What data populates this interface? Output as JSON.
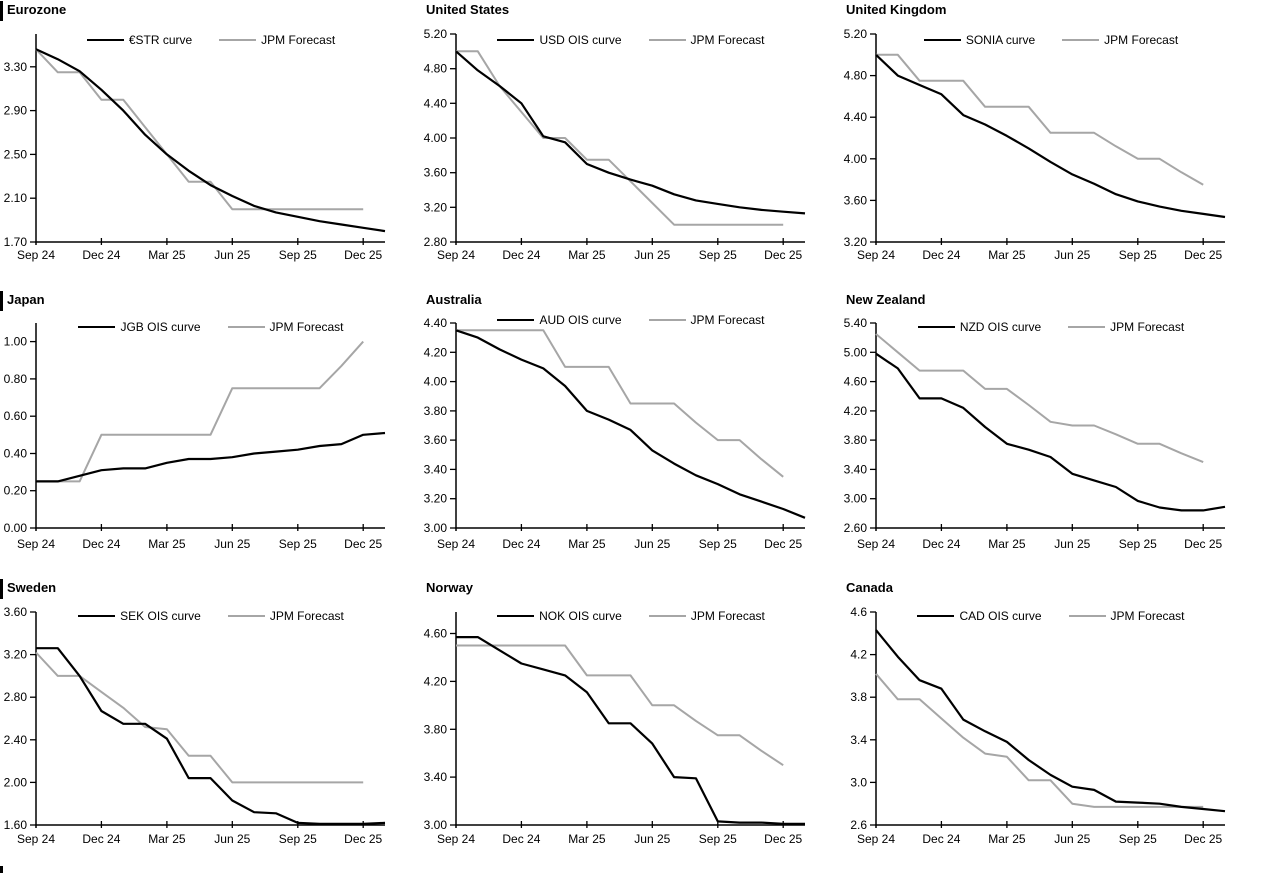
{
  "page": {
    "background": "#ffffff",
    "curve_color": "#000000",
    "forecast_color": "#a6a6a6",
    "forecast_label": "JPM Forecast"
  },
  "chart_data": [
    {
      "type": "line",
      "title": "Eurozone",
      "x_tick_labels": [
        "Sep 24",
        "Dec 24",
        "Mar 25",
        "Jun 25",
        "Sep 25",
        "Dec 25"
      ],
      "x_tick_positions": [
        0,
        3,
        6,
        9,
        12,
        15
      ],
      "x_note": "points are monthly from Sep 24; curves extend one month past Dec 25",
      "ylim": [
        1.7,
        3.6
      ],
      "grid": false,
      "legend_position": "top-center",
      "ytick_labels": [
        "3.30",
        "2.90",
        "2.50",
        "2.10",
        "1.70"
      ],
      "series": [
        {
          "name": "€STR curve",
          "color": "#000000",
          "values": [
            3.46,
            3.37,
            3.26,
            3.09,
            2.9,
            2.68,
            2.5,
            2.35,
            2.22,
            2.12,
            2.03,
            1.97,
            1.93,
            1.89,
            1.86,
            1.83,
            1.8
          ]
        },
        {
          "name": "JPM Forecast",
          "color": "#a6a6a6",
          "values": [
            3.46,
            3.25,
            3.25,
            3.0,
            3.0,
            2.75,
            2.5,
            2.25,
            2.25,
            2.0,
            2.0,
            2.0,
            2.0,
            2.0,
            2.0,
            2.0
          ]
        }
      ]
    },
    {
      "type": "line",
      "title": "United States",
      "x_tick_labels": [
        "Sep 24",
        "Dec 24",
        "Mar 25",
        "Jun 25",
        "Sep 25",
        "Dec 25"
      ],
      "x_tick_positions": [
        0,
        3,
        6,
        9,
        12,
        15
      ],
      "ylim": [
        2.8,
        5.2
      ],
      "grid": false,
      "legend_position": "top-center",
      "ytick_labels": [
        "5.20",
        "4.80",
        "4.40",
        "4.00",
        "3.60",
        "3.20",
        "2.80"
      ],
      "series": [
        {
          "name": "USD OIS curve",
          "color": "#000000",
          "values": [
            5.0,
            4.78,
            4.6,
            4.4,
            4.02,
            3.95,
            3.7,
            3.6,
            3.52,
            3.45,
            3.35,
            3.28,
            3.24,
            3.2,
            3.17,
            3.15,
            3.13
          ]
        },
        {
          "name": "JPM Forecast",
          "color": "#a6a6a6",
          "values": [
            5.0,
            5.0,
            4.6,
            4.3,
            4.0,
            4.0,
            3.75,
            3.75,
            3.5,
            3.25,
            3.0,
            3.0,
            3.0,
            3.0,
            3.0,
            3.0
          ]
        }
      ]
    },
    {
      "type": "line",
      "title": "United Kingdom",
      "x_tick_labels": [
        "Sep 24",
        "Dec 24",
        "Mar 25",
        "Jun 25",
        "Sep 25",
        "Dec 25"
      ],
      "x_tick_positions": [
        0,
        3,
        6,
        9,
        12,
        15
      ],
      "ylim": [
        3.2,
        5.2
      ],
      "grid": false,
      "legend_position": "top-center",
      "ytick_labels": [
        "5.20",
        "4.80",
        "4.40",
        "4.00",
        "3.60",
        "3.20"
      ],
      "series": [
        {
          "name": "SONIA curve",
          "color": "#000000",
          "values": [
            5.0,
            4.8,
            4.71,
            4.62,
            4.42,
            4.33,
            4.22,
            4.1,
            3.97,
            3.85,
            3.76,
            3.66,
            3.59,
            3.54,
            3.5,
            3.47,
            3.44
          ]
        },
        {
          "name": "JPM Forecast",
          "color": "#a6a6a6",
          "values": [
            5.0,
            5.0,
            4.75,
            4.75,
            4.75,
            4.5,
            4.5,
            4.5,
            4.25,
            4.25,
            4.25,
            4.12,
            4.0,
            4.0,
            3.87,
            3.75
          ]
        }
      ]
    },
    {
      "type": "line",
      "title": "Japan",
      "x_tick_labels": [
        "Sep 24",
        "Dec 24",
        "Mar 25",
        "Jun 25",
        "Sep 25",
        "Dec 25"
      ],
      "x_tick_positions": [
        0,
        3,
        6,
        9,
        12,
        15
      ],
      "ylim": [
        0.0,
        1.1
      ],
      "grid": false,
      "legend_position": "top-center",
      "ytick_labels": [
        "1.00",
        "0.80",
        "0.60",
        "0.40",
        "0.20",
        "0.00"
      ],
      "series": [
        {
          "name": "JGB OIS curve",
          "color": "#000000",
          "values": [
            0.25,
            0.25,
            0.28,
            0.31,
            0.32,
            0.32,
            0.35,
            0.37,
            0.37,
            0.38,
            0.4,
            0.41,
            0.42,
            0.44,
            0.45,
            0.5,
            0.51
          ]
        },
        {
          "name": "JPM Forecast",
          "color": "#a6a6a6",
          "values": [
            0.25,
            0.25,
            0.25,
            0.5,
            0.5,
            0.5,
            0.5,
            0.5,
            0.5,
            0.75,
            0.75,
            0.75,
            0.75,
            0.75,
            0.87,
            1.0
          ]
        }
      ]
    },
    {
      "type": "line",
      "title": "Australia",
      "x_tick_labels": [
        "Sep 24",
        "Dec 24",
        "Mar 25",
        "Jun 25",
        "Sep 25",
        "Dec 25"
      ],
      "x_tick_positions": [
        0,
        3,
        6,
        9,
        12,
        15
      ],
      "ylim": [
        3.0,
        4.4
      ],
      "grid": false,
      "legend_position": "top-center",
      "ytick_labels": [
        "4.40",
        "4.20",
        "4.00",
        "3.80",
        "3.60",
        "3.40",
        "3.20",
        "3.00"
      ],
      "series": [
        {
          "name": "AUD OIS curve",
          "color": "#000000",
          "values": [
            4.35,
            4.3,
            4.22,
            4.15,
            4.09,
            3.97,
            3.8,
            3.74,
            3.67,
            3.53,
            3.44,
            3.36,
            3.3,
            3.23,
            3.18,
            3.13,
            3.07
          ]
        },
        {
          "name": "JPM Forecast",
          "color": "#a6a6a6",
          "values": [
            4.35,
            4.35,
            4.35,
            4.35,
            4.35,
            4.1,
            4.1,
            4.1,
            3.85,
            3.85,
            3.85,
            3.72,
            3.6,
            3.6,
            3.47,
            3.35
          ]
        }
      ]
    },
    {
      "type": "line",
      "title": "New Zealand",
      "x_tick_labels": [
        "Sep 24",
        "Dec 24",
        "Mar 25",
        "Jun 25",
        "Sep 25",
        "Dec 25"
      ],
      "x_tick_positions": [
        0,
        3,
        6,
        9,
        12,
        15
      ],
      "ylim": [
        2.6,
        5.4
      ],
      "grid": false,
      "legend_position": "top-center",
      "ytick_labels": [
        "5.40",
        "5.00",
        "4.60",
        "4.20",
        "3.80",
        "3.40",
        "3.00",
        "2.60"
      ],
      "series": [
        {
          "name": "NZD OIS curve",
          "color": "#000000",
          "values": [
            4.98,
            4.78,
            4.37,
            4.37,
            4.24,
            3.98,
            3.75,
            3.67,
            3.57,
            3.34,
            3.25,
            3.16,
            2.97,
            2.88,
            2.84,
            2.84,
            2.89
          ]
        },
        {
          "name": "JPM Forecast",
          "color": "#a6a6a6",
          "values": [
            5.25,
            5.0,
            4.75,
            4.75,
            4.75,
            4.5,
            4.5,
            4.28,
            4.05,
            4.0,
            4.0,
            3.88,
            3.75,
            3.75,
            3.62,
            3.5
          ]
        }
      ]
    },
    {
      "type": "line",
      "title": "Sweden",
      "x_tick_labels": [
        "Sep 24",
        "Dec 24",
        "Mar 25",
        "Jun 25",
        "Sep 25",
        "Dec 25"
      ],
      "x_tick_positions": [
        0,
        3,
        6,
        9,
        12,
        15
      ],
      "ylim": [
        1.6,
        3.6
      ],
      "grid": false,
      "legend_position": "top-center",
      "ytick_labels": [
        "3.60",
        "3.20",
        "2.80",
        "2.40",
        "2.00",
        "1.60"
      ],
      "series": [
        {
          "name": "SEK OIS curve",
          "color": "#000000",
          "values": [
            3.26,
            3.26,
            3.0,
            2.67,
            2.55,
            2.55,
            2.41,
            2.04,
            2.04,
            1.83,
            1.72,
            1.71,
            1.62,
            1.61,
            1.61,
            1.61,
            1.62
          ]
        },
        {
          "name": "JPM Forecast",
          "color": "#a6a6a6",
          "values": [
            3.22,
            3.0,
            3.0,
            2.85,
            2.7,
            2.52,
            2.5,
            2.25,
            2.25,
            2.0,
            2.0,
            2.0,
            2.0,
            2.0,
            2.0,
            2.0
          ]
        }
      ]
    },
    {
      "type": "line",
      "title": "Norway",
      "x_tick_labels": [
        "Sep 24",
        "Dec 24",
        "Mar 25",
        "Jun 25",
        "Sep 25",
        "Dec 25"
      ],
      "x_tick_positions": [
        0,
        3,
        6,
        9,
        12,
        15
      ],
      "ylim": [
        3.0,
        4.78
      ],
      "grid": false,
      "legend_position": "top-center",
      "ytick_labels": [
        "4.60",
        "4.20",
        "3.80",
        "3.40",
        "3.00"
      ],
      "series": [
        {
          "name": "NOK OIS curve",
          "color": "#000000",
          "values": [
            4.57,
            4.57,
            4.46,
            4.35,
            4.3,
            4.25,
            4.11,
            3.85,
            3.85,
            3.68,
            3.4,
            3.39,
            3.03,
            3.02,
            3.02,
            3.01,
            3.01
          ]
        },
        {
          "name": "JPM Forecast",
          "color": "#a6a6a6",
          "values": [
            4.5,
            4.5,
            4.5,
            4.5,
            4.5,
            4.5,
            4.25,
            4.25,
            4.25,
            4.0,
            4.0,
            3.87,
            3.75,
            3.75,
            3.62,
            3.5
          ]
        }
      ]
    },
    {
      "type": "line",
      "title": "Canada",
      "x_tick_labels": [
        "Sep 24",
        "Dec 24",
        "Mar 25",
        "Jun 25",
        "Sep 25",
        "Dec 25"
      ],
      "x_tick_positions": [
        0,
        3,
        6,
        9,
        12,
        15
      ],
      "ylim": [
        2.6,
        4.6
      ],
      "grid": false,
      "legend_position": "top-center",
      "ytick_labels": [
        "4.6",
        "4.2",
        "3.8",
        "3.4",
        "3.0",
        "2.6"
      ],
      "series": [
        {
          "name": "CAD OIS curve",
          "color": "#000000",
          "values": [
            4.43,
            4.18,
            3.96,
            3.88,
            3.59,
            3.48,
            3.38,
            3.21,
            3.07,
            2.96,
            2.93,
            2.82,
            2.81,
            2.8,
            2.77,
            2.75,
            2.73
          ]
        },
        {
          "name": "JPM Forecast",
          "color": "#a6a6a6",
          "values": [
            4.02,
            3.78,
            3.78,
            3.6,
            3.42,
            3.27,
            3.24,
            3.02,
            3.02,
            2.8,
            2.77,
            2.77,
            2.77,
            2.77,
            2.77,
            2.77
          ]
        }
      ]
    }
  ]
}
